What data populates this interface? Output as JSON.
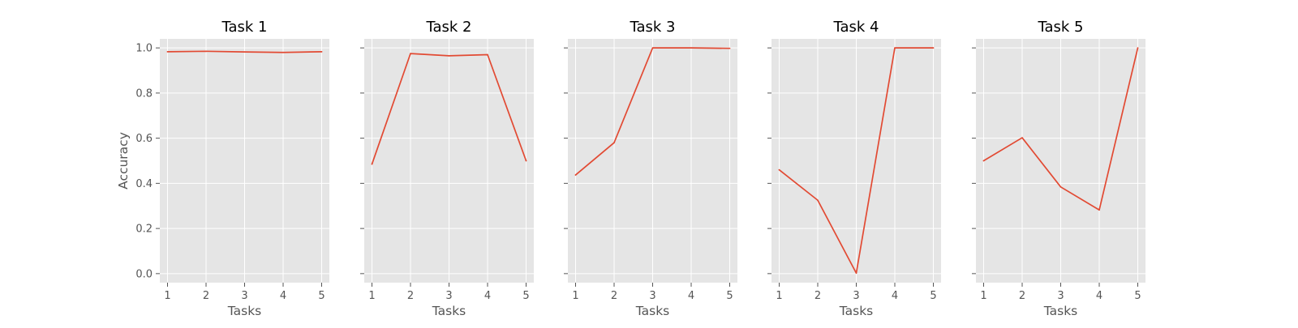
{
  "chart_data": [
    {
      "type": "line",
      "title": "Task 1",
      "xlabel": "Tasks",
      "ylabel": "Accuracy",
      "x": [
        1,
        2,
        3,
        4,
        5
      ],
      "xticks": [
        "1",
        "2",
        "3",
        "4",
        "5"
      ],
      "ylim": [
        -0.04,
        1.04
      ],
      "yticks": [
        "0.0",
        "0.2",
        "0.4",
        "0.6",
        "0.8",
        "1.0"
      ],
      "grid": true,
      "series": [
        {
          "values": [
            0.983,
            0.985,
            0.982,
            0.98,
            0.983
          ]
        }
      ]
    },
    {
      "type": "line",
      "title": "Task 2",
      "xlabel": "Tasks",
      "ylabel": "",
      "x": [
        1,
        2,
        3,
        4,
        5
      ],
      "xticks": [
        "1",
        "2",
        "3",
        "4",
        "5"
      ],
      "ylim": [
        -0.04,
        1.04
      ],
      "yticks": [],
      "grid": true,
      "series": [
        {
          "values": [
            0.485,
            0.975,
            0.965,
            0.97,
            0.5
          ]
        }
      ]
    },
    {
      "type": "line",
      "title": "Task 3",
      "xlabel": "Tasks",
      "ylabel": "",
      "x": [
        1,
        2,
        3,
        4,
        5
      ],
      "xticks": [
        "1",
        "2",
        "3",
        "4",
        "5"
      ],
      "ylim": [
        -0.04,
        1.04
      ],
      "yticks": [],
      "grid": true,
      "series": [
        {
          "values": [
            0.437,
            0.58,
            1.0,
            1.0,
            0.998
          ]
        }
      ]
    },
    {
      "type": "line",
      "title": "Task 4",
      "xlabel": "Tasks",
      "ylabel": "",
      "x": [
        1,
        2,
        3,
        4,
        5
      ],
      "xticks": [
        "1",
        "2",
        "3",
        "4",
        "5"
      ],
      "ylim": [
        -0.04,
        1.04
      ],
      "yticks": [],
      "grid": true,
      "series": [
        {
          "values": [
            0.46,
            0.325,
            0.002,
            1.0,
            1.0
          ]
        }
      ]
    },
    {
      "type": "line",
      "title": "Task 5",
      "xlabel": "Tasks",
      "ylabel": "",
      "x": [
        1,
        2,
        3,
        4,
        5
      ],
      "xticks": [
        "1",
        "2",
        "3",
        "4",
        "5"
      ],
      "ylim": [
        -0.04,
        1.04
      ],
      "yticks": [],
      "grid": true,
      "series": [
        {
          "values": [
            0.5,
            0.602,
            0.384,
            0.282,
            1.0
          ]
        }
      ]
    }
  ],
  "style": {
    "panel_background": "#e5e5e5",
    "grid_color": "#ffffff",
    "line_color": "#e24a33",
    "tick_color": "#555555"
  }
}
